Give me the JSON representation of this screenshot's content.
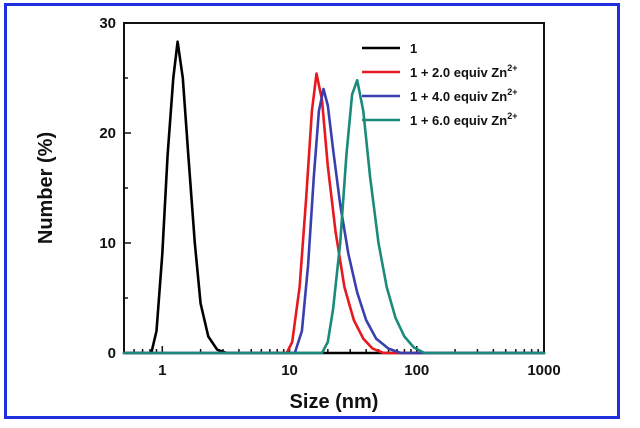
{
  "chart_data": {
    "type": "line",
    "xlabel": "Size (nm)",
    "ylabel": "Number (%)",
    "x_scale": "log",
    "xlim": [
      0.5,
      1000
    ],
    "ylim": [
      0,
      30
    ],
    "x_ticks": [
      1,
      10,
      100,
      1000
    ],
    "x_tick_labels": [
      "1",
      "10",
      "100",
      "1000"
    ],
    "y_ticks": [
      0,
      10,
      20,
      30
    ],
    "y_tick_labels": [
      "0",
      "10",
      "20",
      "30"
    ],
    "grid": false,
    "legend_position": "top-right",
    "series": [
      {
        "name": "1",
        "color": "#000000",
        "x": [
          0.5,
          0.82,
          0.9,
          1.0,
          1.1,
          1.22,
          1.32,
          1.45,
          1.6,
          1.8,
          2.0,
          2.3,
          2.7,
          3.2,
          5.0,
          1000
        ],
        "y": [
          0,
          0,
          2.0,
          9.0,
          18.0,
          25.0,
          28.3,
          25.0,
          18.0,
          10.0,
          4.5,
          1.5,
          0.3,
          0,
          0,
          0
        ]
      },
      {
        "name": "1 + 2.0 equiv Zn",
        "color": "#e8191e",
        "x": [
          0.5,
          9.5,
          10.5,
          12.0,
          13.5,
          15.0,
          16.3,
          18.0,
          20.0,
          23.0,
          27.0,
          32.0,
          38.0,
          45.0,
          55.0,
          1000
        ],
        "y": [
          0,
          0,
          1.0,
          6.0,
          14.0,
          22.0,
          25.4,
          23.0,
          17.0,
          11.0,
          6.0,
          3.0,
          1.3,
          0.4,
          0,
          0
        ]
      },
      {
        "name": "1 + 4.0 equiv Zn",
        "color": "#3a3fb0",
        "x": [
          0.5,
          11.0,
          12.5,
          14.0,
          15.5,
          17.0,
          18.5,
          20.0,
          22.0,
          25.0,
          29.0,
          34.0,
          40.0,
          48.0,
          60.0,
          75.0,
          1000
        ],
        "y": [
          0,
          0,
          2.0,
          8.0,
          16.0,
          22.0,
          24.0,
          22.5,
          18.5,
          13.5,
          9.0,
          5.5,
          3.0,
          1.3,
          0.4,
          0,
          0
        ]
      },
      {
        "name": "1 + 6.0 equiv Zn",
        "color": "#1a8a7a",
        "x": [
          0.5,
          18.0,
          20.0,
          22.0,
          25.0,
          28.0,
          31.0,
          34.0,
          38.0,
          43.0,
          50.0,
          58.0,
          68.0,
          80.0,
          95.0,
          115.0,
          1000
        ],
        "y": [
          0,
          0,
          1.0,
          4.0,
          10.0,
          18.0,
          23.5,
          24.8,
          22.0,
          16.0,
          10.0,
          6.0,
          3.2,
          1.5,
          0.5,
          0,
          0
        ]
      }
    ],
    "legend_superscript": "2+"
  }
}
